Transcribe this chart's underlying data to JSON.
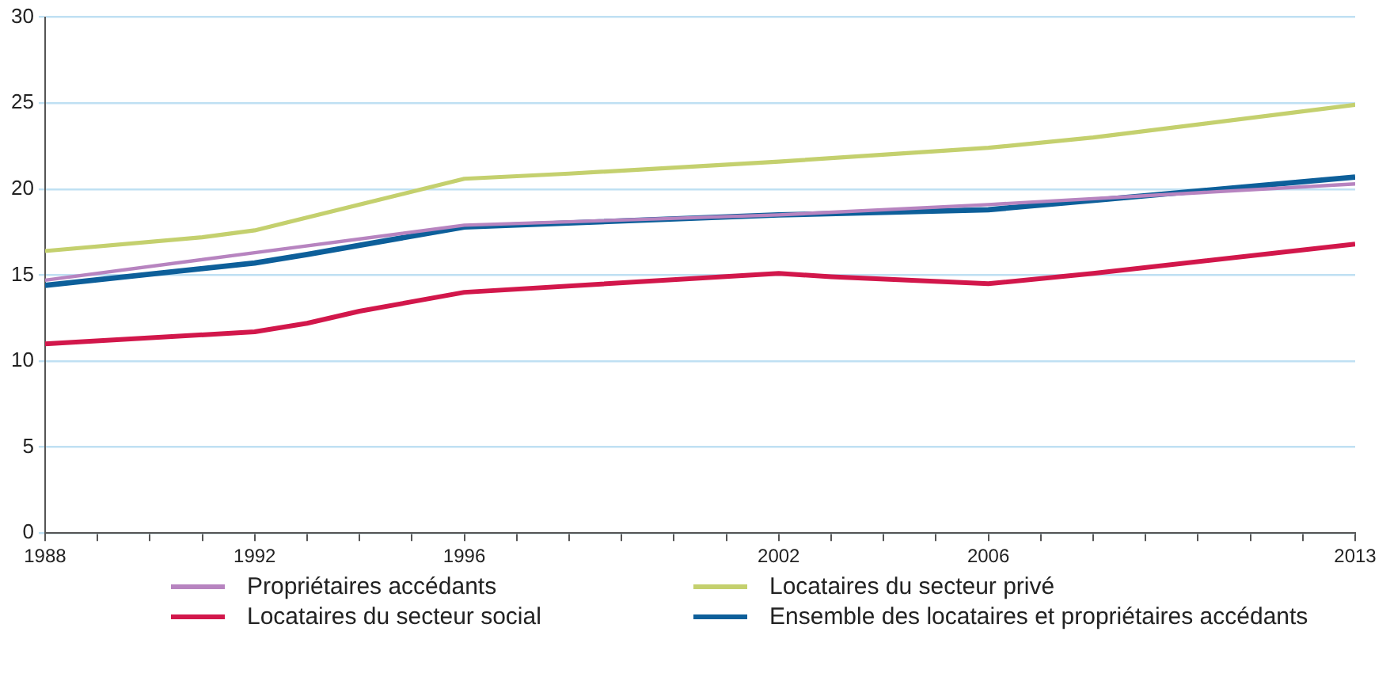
{
  "chart_data": {
    "type": "line",
    "xlim": [
      1988,
      2013
    ],
    "ylim": [
      0,
      30
    ],
    "xticks": [
      1988,
      {
        "value": 1989,
        "label": null
      },
      {
        "value": 1990,
        "label": null
      },
      {
        "value": 1991,
        "label": null
      },
      1992,
      {
        "value": 1993,
        "label": null
      },
      {
        "value": 1994,
        "label": null
      },
      {
        "value": 1995,
        "label": null
      },
      1996,
      {
        "value": 1997,
        "label": null
      },
      {
        "value": 1998,
        "label": null
      },
      {
        "value": 1999,
        "label": null
      },
      {
        "value": 2000,
        "label": null
      },
      {
        "value": 2001,
        "label": null
      },
      2002,
      {
        "value": 2003,
        "label": null
      },
      {
        "value": 2004,
        "label": null
      },
      {
        "value": 2005,
        "label": null
      },
      2006,
      {
        "value": 2007,
        "label": null
      },
      {
        "value": 2008,
        "label": null
      },
      {
        "value": 2009,
        "label": null
      },
      {
        "value": 2010,
        "label": null
      },
      {
        "value": 2011,
        "label": null
      },
      {
        "value": 2012,
        "label": null
      },
      2013
    ],
    "yticks": [
      0,
      5,
      10,
      15,
      20,
      25,
      30
    ],
    "grid": "y",
    "legend": "bottom",
    "marker": "none",
    "line_style": "solid",
    "series": [
      {
        "name": "Propriétaires accédants",
        "color": "#b784c0",
        "x": [
          1988,
          1992,
          1996,
          2002,
          2006,
          2013
        ],
        "values": [
          14.7,
          16.3,
          17.9,
          18.5,
          19.1,
          20.3
        ]
      },
      {
        "name": "Locataires du secteur privé",
        "color": "#c4d06e",
        "x": [
          1988,
          1991,
          1992,
          1996,
          1998,
          2002,
          2006,
          2008,
          2013
        ],
        "values": [
          16.4,
          17.2,
          17.6,
          20.6,
          20.9,
          21.6,
          22.4,
          23.0,
          24.9
        ]
      },
      {
        "name": "Locataires du secteur social",
        "color": "#d2174b",
        "x": [
          1988,
          1992,
          1993,
          1994,
          1996,
          2002,
          2003,
          2006,
          2008,
          2013
        ],
        "values": [
          11.0,
          11.7,
          12.2,
          12.9,
          14.0,
          15.1,
          14.9,
          14.5,
          15.1,
          16.8
        ]
      },
      {
        "name": "Ensemble des locataires et propriétaires accédants",
        "color": "#0d5f9a",
        "x": [
          1988,
          1992,
          1993,
          1996,
          2002,
          2006,
          2013
        ],
        "values": [
          14.4,
          15.7,
          16.2,
          17.8,
          18.5,
          18.8,
          20.7
        ]
      }
    ]
  }
}
